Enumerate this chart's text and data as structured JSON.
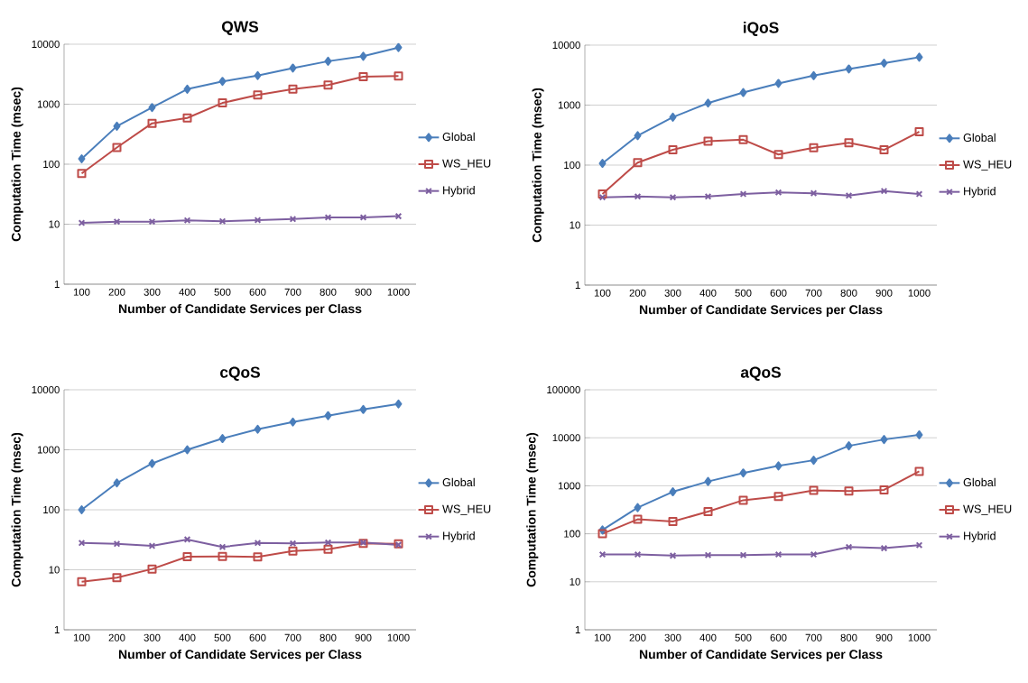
{
  "chart_data": [
    {
      "type": "line",
      "title": "QWS",
      "xlabel": "Number of Candidate Services per Class",
      "ylabel": "Computation Time (msec)",
      "categories": [
        "100",
        "200",
        "300",
        "400",
        "500",
        "600",
        "700",
        "800",
        "900",
        "1000"
      ],
      "log": "y",
      "grid": "y",
      "legend": "right",
      "ylim": [
        1,
        10000
      ],
      "yticks": [
        1,
        10,
        100,
        1000,
        10000
      ],
      "series": [
        {
          "name": "Global",
          "color": "#4a7ebb",
          "marker": "diamond",
          "values": [
            123,
            430,
            880,
            1780,
            2400,
            3000,
            4000,
            5200,
            6300,
            8800
          ]
        },
        {
          "name": "WS_HEU",
          "color": "#be4b48",
          "marker": "square",
          "values": [
            70,
            190,
            480,
            590,
            1050,
            1430,
            1780,
            2080,
            2880,
            2950
          ]
        },
        {
          "name": "Hybrid",
          "color": "#7d5fa0",
          "marker": "cross",
          "values": [
            10.5,
            11,
            11,
            11.6,
            11.2,
            11.7,
            12.2,
            13,
            13,
            13.6
          ]
        }
      ]
    },
    {
      "type": "line",
      "title": "iQoS",
      "xlabel": "Number of Candidate Services per Class",
      "ylabel": "Computation Time (msec)",
      "categories": [
        "100",
        "200",
        "300",
        "400",
        "500",
        "600",
        "700",
        "800",
        "900",
        "1000"
      ],
      "log": "y",
      "grid": "y",
      "legend": "right",
      "ylim": [
        1,
        10000
      ],
      "yticks": [
        1,
        10,
        100,
        1000,
        10000
      ],
      "series": [
        {
          "name": "Global",
          "color": "#4a7ebb",
          "marker": "diamond",
          "values": [
            107,
            310,
            630,
            1080,
            1620,
            2300,
            3100,
            4000,
            5000,
            6300
          ]
        },
        {
          "name": "WS_HEU",
          "color": "#be4b48",
          "marker": "square",
          "values": [
            33,
            110,
            180,
            250,
            265,
            150,
            195,
            235,
            180,
            360
          ]
        },
        {
          "name": "Hybrid",
          "color": "#7d5fa0",
          "marker": "cross",
          "values": [
            29,
            30,
            29,
            30,
            33,
            35,
            34,
            31,
            37,
            33
          ]
        }
      ]
    },
    {
      "type": "line",
      "title": "cQoS",
      "xlabel": "Number of Candidate Services per Class",
      "ylabel": "Computation Time (msec)",
      "categories": [
        "100",
        "200",
        "300",
        "400",
        "500",
        "600",
        "700",
        "800",
        "900",
        "1000"
      ],
      "log": "y",
      "grid": "y",
      "legend": "right",
      "ylim": [
        1,
        10000
      ],
      "yticks": [
        1,
        10,
        100,
        1000,
        10000
      ],
      "series": [
        {
          "name": "Global",
          "color": "#4a7ebb",
          "marker": "diamond",
          "values": [
            100,
            280,
            590,
            1000,
            1540,
            2200,
            2900,
            3700,
            4700,
            5800
          ]
        },
        {
          "name": "WS_HEU",
          "color": "#be4b48",
          "marker": "square",
          "values": [
            6.3,
            7.4,
            10.3,
            16.5,
            16.7,
            16.4,
            20.5,
            22,
            27.5,
            27
          ]
        },
        {
          "name": "Hybrid",
          "color": "#7d5fa0",
          "marker": "cross",
          "values": [
            28,
            27,
            25,
            32,
            24,
            28,
            27.5,
            28.5,
            28.5,
            26
          ]
        }
      ]
    },
    {
      "type": "line",
      "title": "aQoS",
      "xlabel": "Number of Candidate Services per Class",
      "ylabel": "Computation Time (msec)",
      "categories": [
        "100",
        "200",
        "300",
        "400",
        "500",
        "600",
        "700",
        "800",
        "900",
        "1000"
      ],
      "log": "y",
      "grid": "y",
      "legend": "right",
      "ylim": [
        1,
        100000
      ],
      "yticks": [
        1,
        10,
        100,
        1000,
        10000,
        100000
      ],
      "series": [
        {
          "name": "Global",
          "color": "#4a7ebb",
          "marker": "diamond",
          "values": [
            120,
            350,
            750,
            1230,
            1850,
            2600,
            3400,
            6800,
            9200,
            11500
          ]
        },
        {
          "name": "WS_HEU",
          "color": "#be4b48",
          "marker": "square",
          "values": [
            100,
            200,
            180,
            290,
            500,
            600,
            800,
            780,
            820,
            2000
          ]
        },
        {
          "name": "Hybrid",
          "color": "#7d5fa0",
          "marker": "cross",
          "values": [
            37,
            37,
            35,
            36,
            36,
            37,
            37,
            53,
            50,
            58
          ]
        }
      ]
    }
  ]
}
